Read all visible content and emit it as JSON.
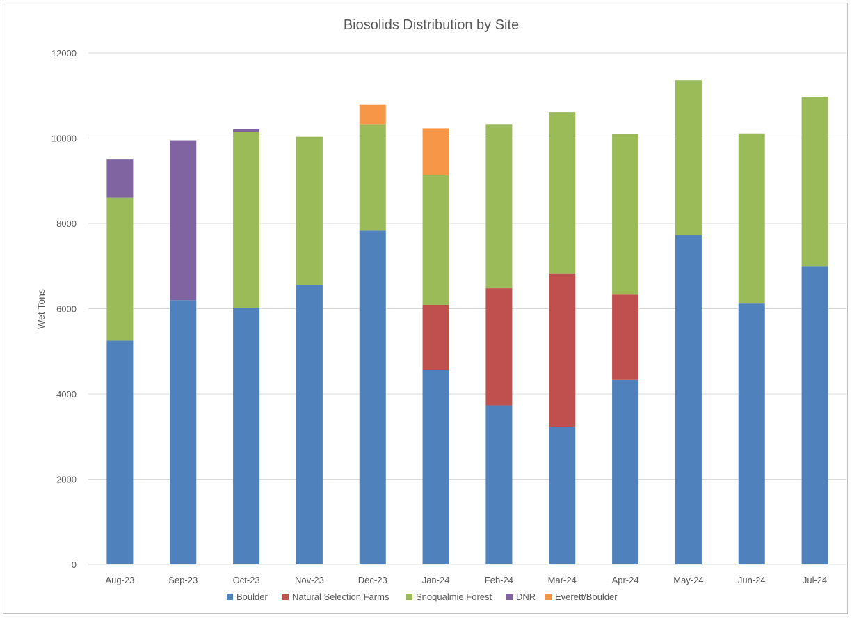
{
  "chart_data": {
    "type": "bar",
    "stacked": true,
    "title": "Biosolids Distribution by Site",
    "xlabel": "",
    "ylabel": "Wet Tons",
    "ylim": [
      0,
      12000
    ],
    "yticks": [
      "0",
      "2000",
      "4000",
      "6000",
      "8000",
      "10000",
      "12000"
    ],
    "grid": true,
    "legend_position": "bottom",
    "categories": [
      "Aug-23",
      "Sep-23",
      "Oct-23",
      "Nov-23",
      "Dec-23",
      "Jan-24",
      "Feb-24",
      "Mar-24",
      "Apr-24",
      "May-24",
      "Jun-24",
      "Jul-24"
    ],
    "series": [
      {
        "name": "Boulder",
        "color": "#4f81bd",
        "values": [
          5250,
          6200,
          6020,
          6560,
          7830,
          4560,
          3730,
          3230,
          4330,
          7730,
          6120,
          7000
        ]
      },
      {
        "name": "Natural Selection Farms",
        "color": "#c0504d",
        "values": [
          0,
          0,
          0,
          0,
          0,
          1530,
          2750,
          3600,
          2000,
          0,
          0,
          0
        ]
      },
      {
        "name": "Snoqualmie Forest",
        "color": "#9bbb59",
        "values": [
          3360,
          0,
          4120,
          3470,
          2500,
          3040,
          3850,
          3780,
          3770,
          3630,
          3990,
          3970
        ]
      },
      {
        "name": "DNR",
        "color": "#8064a2",
        "values": [
          890,
          3750,
          70,
          0,
          0,
          0,
          0,
          0,
          0,
          0,
          0,
          0
        ]
      },
      {
        "name": "Everett/Boulder",
        "color": "#f79646",
        "values": [
          0,
          0,
          0,
          0,
          450,
          1100,
          0,
          0,
          0,
          0,
          0,
          0
        ]
      }
    ]
  }
}
